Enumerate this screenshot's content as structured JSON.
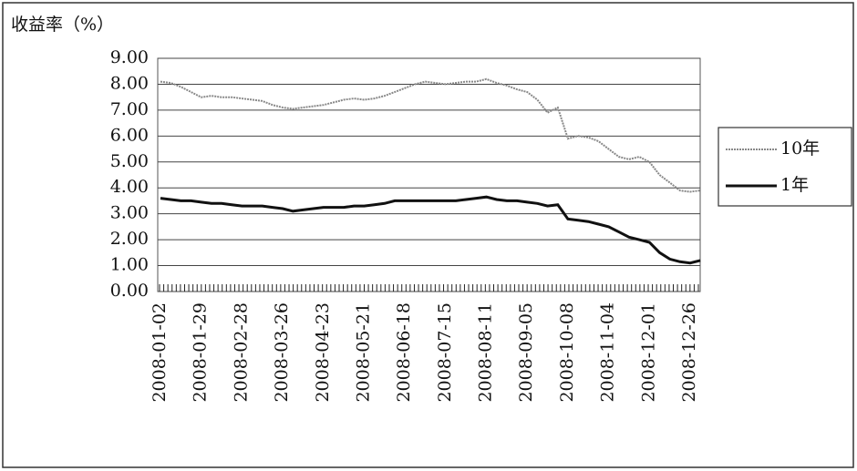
{
  "chart_data": {
    "type": "line",
    "title": "收益率（%）",
    "categories": [
      "2008-01-02",
      null,
      null,
      null,
      "2008-01-29",
      null,
      null,
      null,
      "2008-02-28",
      null,
      null,
      null,
      "2008-03-26",
      null,
      null,
      null,
      "2008-04-23",
      null,
      null,
      null,
      "2008-05-21",
      null,
      null,
      null,
      "2008-06-18",
      null,
      null,
      null,
      "2008-07-15",
      null,
      null,
      null,
      "2008-08-11",
      null,
      null,
      null,
      "2008-09-05",
      null,
      null,
      null,
      "2008-10-08",
      null,
      null,
      null,
      "2008-11-04",
      null,
      null,
      null,
      "2008-12-01",
      null,
      null,
      null,
      "2008-12-26",
      null
    ],
    "series": [
      {
        "name": "10年",
        "color": "#888888",
        "dashed": true,
        "values": [
          8.1,
          8.05,
          7.9,
          7.7,
          7.5,
          7.55,
          7.5,
          7.5,
          7.45,
          7.4,
          7.35,
          7.2,
          7.1,
          7.05,
          7.1,
          7.15,
          7.2,
          7.3,
          7.4,
          7.45,
          7.4,
          7.45,
          7.55,
          7.7,
          7.85,
          8.0,
          8.1,
          8.05,
          8.0,
          8.05,
          8.1,
          8.1,
          8.2,
          8.05,
          7.95,
          7.8,
          7.7,
          7.4,
          6.9,
          7.1,
          5.9,
          6.0,
          5.95,
          5.8,
          5.5,
          5.2,
          5.1,
          5.2,
          5.0,
          4.5,
          4.2,
          3.9,
          3.85,
          3.9
        ]
      },
      {
        "name": "1年",
        "color": "#111111",
        "dashed": false,
        "values": [
          3.6,
          3.55,
          3.5,
          3.5,
          3.45,
          3.4,
          3.4,
          3.35,
          3.3,
          3.3,
          3.3,
          3.25,
          3.2,
          3.1,
          3.15,
          3.2,
          3.25,
          3.25,
          3.25,
          3.3,
          3.3,
          3.35,
          3.4,
          3.5,
          3.5,
          3.5,
          3.5,
          3.5,
          3.5,
          3.5,
          3.55,
          3.6,
          3.65,
          3.55,
          3.5,
          3.5,
          3.45,
          3.4,
          3.3,
          3.35,
          2.8,
          2.75,
          2.7,
          2.6,
          2.5,
          2.3,
          2.1,
          2.0,
          1.9,
          1.5,
          1.25,
          1.15,
          1.1,
          1.2
        ]
      }
    ],
    "ylim": [
      0,
      9
    ],
    "yticks": [
      {
        "value": 0,
        "label": "0.00"
      },
      {
        "value": 1,
        "label": "1.00"
      },
      {
        "value": 2,
        "label": "2.00"
      },
      {
        "value": 3,
        "label": "3.00"
      },
      {
        "value": 4,
        "label": "4.00"
      },
      {
        "value": 5,
        "label": "5.00"
      },
      {
        "value": 6,
        "label": "6.00"
      },
      {
        "value": 7,
        "label": "7.00"
      },
      {
        "value": 8,
        "label": "8.00"
      },
      {
        "value": 9,
        "label": "9.00"
      }
    ],
    "grid": true,
    "legend": "right"
  }
}
